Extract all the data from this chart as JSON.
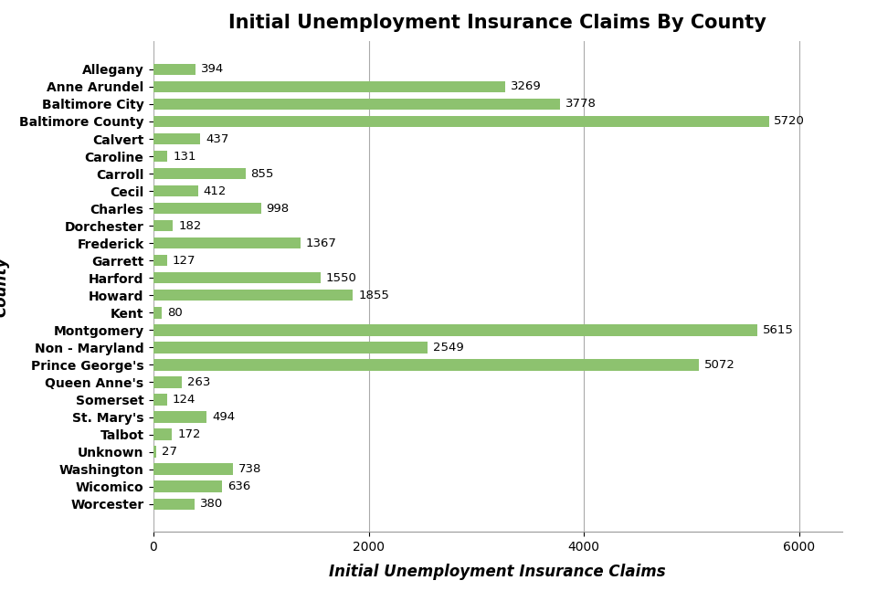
{
  "title": "Initial Unemployment Insurance Claims By County",
  "xlabel": "Initial Unemployment Insurance Claims",
  "ylabel": "County",
  "categories": [
    "Allegany",
    "Anne Arundel",
    "Baltimore City",
    "Baltimore County",
    "Calvert",
    "Caroline",
    "Carroll",
    "Cecil",
    "Charles",
    "Dorchester",
    "Frederick",
    "Garrett",
    "Harford",
    "Howard",
    "Kent",
    "Montgomery",
    "Non - Maryland",
    "Prince George's",
    "Queen Anne's",
    "Somerset",
    "St. Mary's",
    "Talbot",
    "Unknown",
    "Washington",
    "Wicomico",
    "Worcester"
  ],
  "values": [
    394,
    3269,
    3778,
    5720,
    437,
    131,
    855,
    412,
    998,
    182,
    1367,
    127,
    1550,
    1855,
    80,
    5615,
    2549,
    5072,
    263,
    124,
    494,
    172,
    27,
    738,
    636,
    380
  ],
  "bar_color": "#8DC26F",
  "background_color": "#FFFFFF",
  "xlim": [
    0,
    6400
  ],
  "xticks": [
    0,
    2000,
    4000,
    6000
  ],
  "grid_color": "#AAAAAA",
  "title_fontsize": 15,
  "label_fontsize": 12,
  "tick_fontsize": 10,
  "value_fontsize": 9.5,
  "bar_height": 0.65
}
